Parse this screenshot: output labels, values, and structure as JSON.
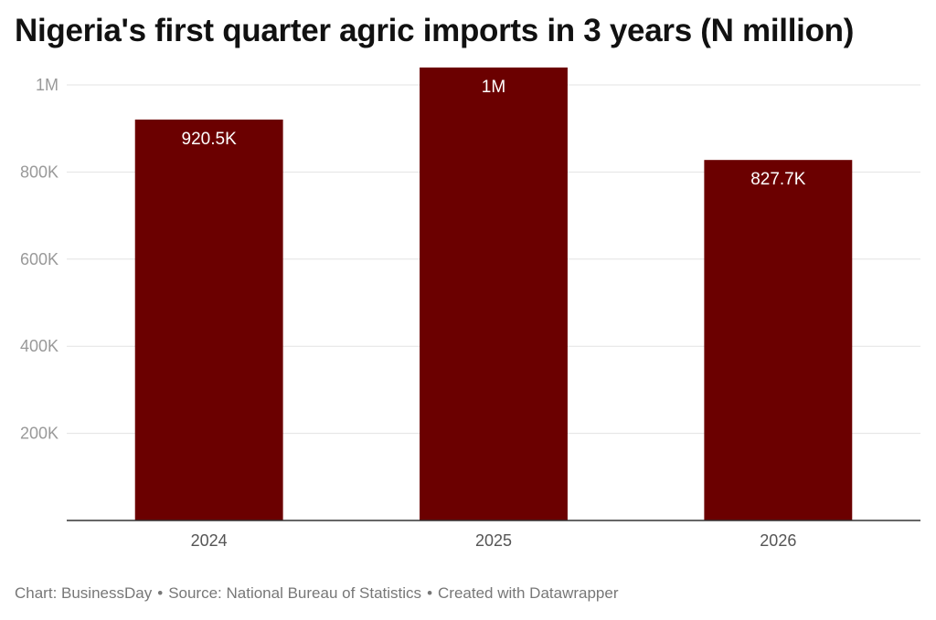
{
  "chart_data": {
    "type": "bar",
    "title": "Nigeria's first quarter agric imports in 3 years (N million)",
    "categories": [
      "2024",
      "2025",
      "2026"
    ],
    "values": [
      920500,
      1040000,
      827700
    ],
    "data_labels": [
      "920.5K",
      "1M",
      "827.7K"
    ],
    "ylim": [
      0,
      1000000
    ],
    "y_ticks": [
      {
        "value": 200000,
        "label": "200K"
      },
      {
        "value": 400000,
        "label": "400K"
      },
      {
        "value": 600000,
        "label": "600K"
      },
      {
        "value": 800000,
        "label": "800K"
      },
      {
        "value": 1000000,
        "label": "1M"
      }
    ],
    "grid": true,
    "xlabel": "",
    "ylabel": "",
    "bar_color": "#6b0000"
  },
  "footer": {
    "chart_credit": "Chart: BusinessDay",
    "source": "Source: National Bureau of Statistics",
    "created_with": "Created with Datawrapper",
    "separator": "•"
  }
}
